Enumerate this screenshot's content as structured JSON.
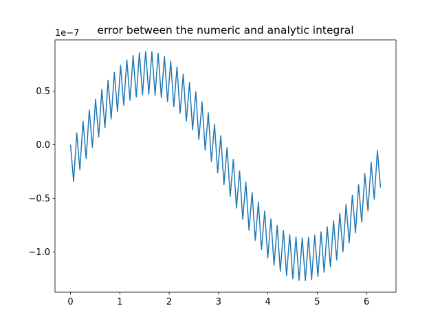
{
  "chart_data": {
    "type": "line",
    "title": "error between the numeric and analytic integral",
    "offset_label": "1e−7",
    "x": [
      0,
      0.063,
      0.127,
      0.19,
      0.254,
      0.317,
      0.381,
      0.444,
      0.508,
      0.571,
      0.635,
      0.698,
      0.762,
      0.825,
      0.889,
      0.952,
      1.015,
      1.079,
      1.142,
      1.206,
      1.269,
      1.333,
      1.396,
      1.46,
      1.523,
      1.587,
      1.65,
      1.714,
      1.777,
      1.841,
      1.904,
      1.967,
      2.031,
      2.094,
      2.158,
      2.221,
      2.285,
      2.348,
      2.412,
      2.475,
      2.539,
      2.602,
      2.666,
      2.729,
      2.793,
      2.856,
      2.919,
      2.983,
      3.046,
      3.11,
      3.173,
      3.237,
      3.3,
      3.364,
      3.427,
      3.491,
      3.554,
      3.618,
      3.681,
      3.745,
      3.808,
      3.871,
      3.935,
      3.998,
      4.062,
      4.125,
      4.189,
      4.252,
      4.316,
      4.379,
      4.443,
      4.506,
      4.57,
      4.633,
      4.697,
      4.76,
      4.824,
      4.887,
      4.95,
      5.014,
      5.077,
      5.141,
      5.204,
      5.268,
      5.331,
      5.395,
      5.458,
      5.522,
      5.585,
      5.649,
      5.712,
      5.776,
      5.839,
      5.902,
      5.966,
      6.029,
      6.093,
      6.156,
      6.22,
      6.283
    ],
    "series": [
      {
        "color": "#1f77b4",
        "values": [
          0,
          -0.345,
          0.11,
          -0.235,
          0.218,
          -0.129,
          0.323,
          -0.026,
          0.423,
          0.07,
          0.516,
          0.159,
          0.6,
          0.239,
          0.675,
          0.309,
          0.739,
          0.367,
          0.791,
          0.413,
          0.831,
          0.445,
          0.857,
          0.465,
          0.869,
          0.47,
          0.867,
          0.461,
          0.852,
          0.439,
          0.822,
          0.402,
          0.78,
          0.353,
          0.724,
          0.292,
          0.657,
          0.22,
          0.58,
          0.138,
          0.493,
          0.047,
          0.399,
          -0.051,
          0.298,
          -0.155,
          0.192,
          -0.263,
          0.083,
          -0.372,
          -0.028,
          -0.483,
          -0.137,
          -0.592,
          -0.245,
          -0.698,
          -0.349,
          -0.799,
          -0.447,
          -0.893,
          -0.538,
          -0.98,
          -0.62,
          -1.057,
          -0.692,
          -1.124,
          -0.753,
          -1.18,
          -0.802,
          -1.222,
          -0.839,
          -1.252,
          -0.861,
          -1.267,
          -0.87,
          -1.269,
          -0.865,
          -1.257,
          -0.845,
          -1.231,
          -0.813,
          -1.191,
          -0.767,
          -1.139,
          -0.709,
          -1.075,
          -0.639,
          -1.0,
          -0.559,
          -0.916,
          -0.47,
          -0.823,
          -0.374,
          -0.723,
          -0.271,
          -0.618,
          -0.165,
          -0.51,
          -0.055,
          -0.4
        ]
      }
    ],
    "xlim": [
      -0.314,
      6.597
    ],
    "xticks": [
      0,
      1,
      2,
      3,
      4,
      5,
      6
    ],
    "ylim": [
      -1.376,
      0.977
    ],
    "yticks": [
      {
        "value": -1.0,
        "label": "−1.0"
      },
      {
        "value": -0.5,
        "label": "−0.5"
      },
      {
        "value": 0.0,
        "label": "0.0"
      },
      {
        "value": 0.5,
        "label": "0.5"
      }
    ],
    "grid": false
  }
}
